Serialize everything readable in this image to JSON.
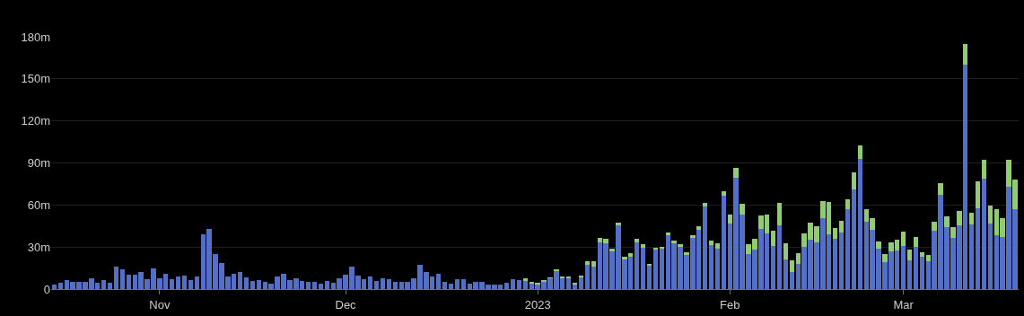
{
  "chart_data": {
    "type": "bar",
    "stacked": true,
    "x": [
      "2022-10-15",
      "2022-10-16",
      "2022-10-17",
      "2022-10-18",
      "2022-10-19",
      "2022-10-20",
      "2022-10-21",
      "2022-10-22",
      "2022-10-23",
      "2022-10-24",
      "2022-10-25",
      "2022-10-26",
      "2022-10-27",
      "2022-10-28",
      "2022-10-29",
      "2022-10-30",
      "2022-10-31",
      "2022-11-01",
      "2022-11-02",
      "2022-11-03",
      "2022-11-04",
      "2022-11-05",
      "2022-11-06",
      "2022-11-07",
      "2022-11-08",
      "2022-11-09",
      "2022-11-10",
      "2022-11-11",
      "2022-11-12",
      "2022-11-13",
      "2022-11-14",
      "2022-11-15",
      "2022-11-16",
      "2022-11-17",
      "2022-11-18",
      "2022-11-19",
      "2022-11-20",
      "2022-11-21",
      "2022-11-22",
      "2022-11-23",
      "2022-11-24",
      "2022-11-25",
      "2022-11-26",
      "2022-11-27",
      "2022-11-28",
      "2022-11-29",
      "2022-11-30",
      "2022-12-01",
      "2022-12-02",
      "2022-12-03",
      "2022-12-04",
      "2022-12-05",
      "2022-12-06",
      "2022-12-07",
      "2022-12-08",
      "2022-12-09",
      "2022-12-10",
      "2022-12-11",
      "2022-12-12",
      "2022-12-13",
      "2022-12-14",
      "2022-12-15",
      "2022-12-16",
      "2022-12-17",
      "2022-12-18",
      "2022-12-19",
      "2022-12-20",
      "2022-12-21",
      "2022-12-22",
      "2022-12-23",
      "2022-12-24",
      "2022-12-25",
      "2022-12-26",
      "2022-12-27",
      "2022-12-28",
      "2022-12-29",
      "2022-12-30",
      "2022-12-31",
      "2023-01-01",
      "2023-01-02",
      "2023-01-03",
      "2023-01-04",
      "2023-01-05",
      "2023-01-06",
      "2023-01-07",
      "2023-01-08",
      "2023-01-09",
      "2023-01-10",
      "2023-01-11",
      "2023-01-12",
      "2023-01-13",
      "2023-01-14",
      "2023-01-15",
      "2023-01-16",
      "2023-01-17",
      "2023-01-18",
      "2023-01-19",
      "2023-01-20",
      "2023-01-21",
      "2023-01-22",
      "2023-01-23",
      "2023-01-24",
      "2023-01-25",
      "2023-01-26",
      "2023-01-27",
      "2023-01-28",
      "2023-01-29",
      "2023-01-30",
      "2023-01-31",
      "2023-02-01",
      "2023-02-02",
      "2023-02-03",
      "2023-02-04",
      "2023-02-05",
      "2023-02-06",
      "2023-02-07",
      "2023-02-08",
      "2023-02-09",
      "2023-02-10",
      "2023-02-11",
      "2023-02-12",
      "2023-02-13",
      "2023-02-14",
      "2023-02-15",
      "2023-02-16",
      "2023-02-17",
      "2023-02-18",
      "2023-02-19",
      "2023-02-20",
      "2023-02-21",
      "2023-02-22",
      "2023-02-23",
      "2023-02-24",
      "2023-02-25",
      "2023-02-26",
      "2023-02-27",
      "2023-02-28",
      "2023-03-01",
      "2023-03-02",
      "2023-03-03",
      "2023-03-04",
      "2023-03-05",
      "2023-03-06",
      "2023-03-07",
      "2023-03-08",
      "2023-03-09",
      "2023-03-10",
      "2023-03-11",
      "2023-03-12",
      "2023-03-13",
      "2023-03-14",
      "2023-03-15",
      "2023-03-16",
      "2023-03-17",
      "2023-03-18",
      "2023-03-19"
    ],
    "series": [
      {
        "color": "#5470c6",
        "values": [
          3,
          4.3,
          6.6,
          5.4,
          4.9,
          5.1,
          7.5,
          4.7,
          6.6,
          4.7,
          15.8,
          13.9,
          10.5,
          10.5,
          12.2,
          7.1,
          15,
          7.5,
          10.9,
          6.9,
          9,
          9.6,
          6.2,
          8.8,
          39,
          43,
          25,
          18.4,
          9.2,
          10.7,
          12.4,
          8.6,
          5.6,
          6.2,
          5.1,
          3.9,
          8.8,
          10.9,
          6.6,
          7.5,
          5.6,
          5.1,
          4.9,
          4.1,
          5.8,
          4.7,
          7.5,
          10,
          15.8,
          9.9,
          7.1,
          8.8,
          5.8,
          7.5,
          6.9,
          5.4,
          5.1,
          4.9,
          7.5,
          17.1,
          12.2,
          9.2,
          10.9,
          4.9,
          4.1,
          7.1,
          7.1,
          4.1,
          4.9,
          4.9,
          3.4,
          3.0,
          3.4,
          4.5,
          6.9,
          6.6,
          6.0,
          4.3,
          3.6,
          5.7,
          7.7,
          12.8,
          7.9,
          7.5,
          3.6,
          8.6,
          17.3,
          16.1,
          33.2,
          32.8,
          27.2,
          45.2,
          21.2,
          23.1,
          33.2,
          29.3,
          16.9,
          28.1,
          28.7,
          38.5,
          32.8,
          29.8,
          24.4,
          36.2,
          42.4,
          58.7,
          31.5,
          28.7,
          66.4,
          46.5,
          79.4,
          53.3,
          25.3,
          28.5,
          42.8,
          39.4,
          30.6,
          45.2,
          21.4,
          12.0,
          17.8,
          30.0,
          35.1,
          33.2,
          50.7,
          39.0,
          36.0,
          40.3,
          57.0,
          71.1,
          92.9,
          47.8,
          42.2,
          29.1,
          19.5,
          26.6,
          27.6,
          30.9,
          20.2,
          30.4,
          22.8,
          19.6,
          41.5,
          67.0,
          44.3,
          36.6,
          45.7,
          160.4,
          46.4,
          57.7,
          78.9,
          46.8,
          38.5,
          37.2,
          73.0,
          57.0
        ]
      },
      {
        "color": "#91cc75",
        "values": [
          0,
          0,
          0,
          0,
          0,
          0,
          0,
          0,
          0,
          0,
          0,
          0,
          0,
          0,
          0,
          0,
          0,
          0,
          0,
          0,
          0,
          0,
          0,
          0,
          0,
          0,
          0,
          0,
          0,
          0,
          0,
          0,
          0,
          0,
          0,
          0,
          0,
          0,
          0,
          0,
          0,
          0,
          0,
          0,
          0,
          0,
          0,
          0,
          0,
          0,
          0,
          0,
          0,
          0,
          0,
          0,
          0,
          0,
          0,
          0,
          0,
          0,
          0,
          0,
          0,
          0,
          0,
          0,
          0,
          0,
          0,
          0,
          0,
          0,
          0,
          0,
          1.9,
          0.4,
          0.4,
          0.6,
          0.3,
          1.5,
          1.3,
          1.5,
          0.9,
          0.9,
          2.8,
          3.6,
          3.2,
          3.0,
          1.5,
          2.1,
          1.9,
          2.4,
          2.4,
          3.0,
          0.9,
          1.5,
          1.3,
          1.7,
          1.9,
          2.1,
          2.1,
          2.1,
          2.6,
          2.6,
          2.8,
          3.9,
          3.4,
          6.6,
          7.3,
          7.3,
          6.9,
          7.3,
          9.6,
          13.5,
          11.3,
          16.1,
          11.1,
          8.4,
          7.7,
          9.9,
          12.4,
          11.6,
          11.8,
          23.1,
          7.3,
          8.4,
          7.1,
          12.4,
          9.6,
          9.4,
          8.1,
          4.9,
          5.4,
          6.6,
          7.7,
          9.8,
          7.9,
          6.6,
          3.4,
          4.5,
          6.8,
          8.5,
          7.7,
          7.7,
          10.0,
          14.7,
          8.3,
          19.1,
          13.6,
          12.6,
          18.7,
          13.4,
          19.1,
          21.1
        ]
      }
    ],
    "ylim": [
      0,
      180
    ],
    "yticks": [
      0,
      {
        "value": 30,
        "label": "30m"
      },
      {
        "value": 60,
        "label": "60m"
      },
      {
        "value": 90,
        "label": "90m"
      },
      {
        "value": 120,
        "label": "120m"
      },
      {
        "value": 150,
        "label": "150m"
      },
      {
        "value": 180,
        "label": "180m"
      }
    ],
    "xlim": [
      "2022-10-14T12:00",
      "2023-03-19T14:00"
    ],
    "xticks": [
      {
        "value": "2022-11-01",
        "label": "Nov"
      },
      {
        "value": "2022-12-01",
        "label": "Dec"
      },
      {
        "value": "2023-01-01",
        "label": "2023"
      },
      {
        "value": "2023-02-01",
        "label": "Feb"
      },
      {
        "value": "2023-03-01",
        "label": "Mar"
      }
    ],
    "grid": "y"
  }
}
